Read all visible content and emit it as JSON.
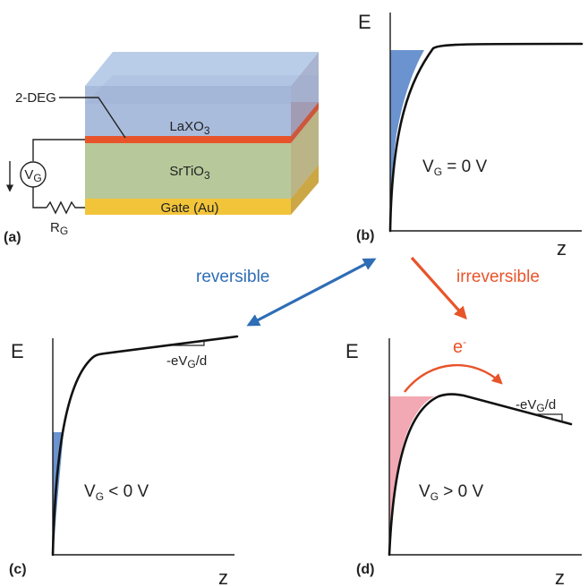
{
  "device": {
    "panel_label": "(a)",
    "label_2deg": "2-DEG",
    "layer_top": "LaXO",
    "layer_top_sub": "3",
    "layer_mid": "SrTiO",
    "layer_mid_sub": "3",
    "layer_gate": "Gate (Au)",
    "source_main": "V",
    "source_sub": "G",
    "resistor_main": "R",
    "resistor_sub": "G",
    "colors": {
      "laxo3": "#9fb6d8",
      "interface": "#e8542a",
      "srtio3": "#b7c99a",
      "gate": "#f2c43a"
    }
  },
  "panels": {
    "b": {
      "label": "(b)",
      "axis_e": "E",
      "axis_z": "z",
      "cond_main": "V",
      "cond_sub": "G",
      "cond_rest": " = 0 V",
      "fill_color": "#6a93cf"
    },
    "c": {
      "label": "(c)",
      "axis_e": "E",
      "axis_z": "z",
      "cond_main": "V",
      "cond_sub": "G",
      "cond_rest": " < 0 V",
      "slope_pre": "-eV",
      "slope_sub": "G",
      "slope_post": "/d",
      "fill_color": "#6a93cf"
    },
    "d": {
      "label": "(d)",
      "axis_e": "E",
      "axis_z": "z",
      "cond_main": "V",
      "cond_sub": "G",
      "cond_rest": " > 0 V",
      "slope_pre": "-eV",
      "slope_sub": "G",
      "slope_post": "/d",
      "electron": "e",
      "electron_sup": "-",
      "fill_color": "#f2a9b3"
    }
  },
  "transitions": {
    "reversible": "reversible",
    "irreversible": "irreversible",
    "reversible_color": "#2f6db5",
    "irreversible_color": "#e8542a"
  }
}
